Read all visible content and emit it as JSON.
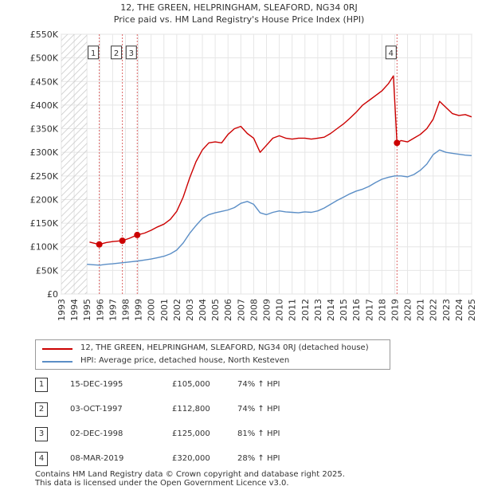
{
  "title_line1": "12, THE GREEN, HELPRINGHAM, SLEAFORD, NG34 0RJ",
  "title_line2": "Price paid vs. HM Land Registry's House Price Index (HPI)",
  "chart_data": {
    "type": "line",
    "title": "12, THE GREEN, HELPRINGHAM, SLEAFORD, NG34 0RJ — Price paid vs. HM Land Registry's House Price Index (HPI)",
    "xlabel": "",
    "ylabel": "",
    "xlim": [
      1993,
      2025
    ],
    "ylim": [
      0,
      550000
    ],
    "x_ticks": [
      1993,
      1994,
      1995,
      1996,
      1997,
      1998,
      1999,
      2000,
      2001,
      2002,
      2003,
      2004,
      2005,
      2006,
      2007,
      2008,
      2009,
      2010,
      2011,
      2012,
      2013,
      2014,
      2015,
      2016,
      2017,
      2018,
      2019,
      2020,
      2021,
      2022,
      2023,
      2024,
      2025
    ],
    "y_ticks": [
      0,
      50000,
      100000,
      150000,
      200000,
      250000,
      300000,
      350000,
      400000,
      450000,
      500000,
      550000
    ],
    "y_tick_labels": [
      "£0",
      "£50K",
      "£100K",
      "£150K",
      "£200K",
      "£250K",
      "£300K",
      "£350K",
      "£400K",
      "£450K",
      "£500K",
      "£550K"
    ],
    "grid": true,
    "series": [
      {
        "name": "12, THE GREEN, HELPRINGHAM, SLEAFORD, NG34 0RJ (detached house)",
        "color": "#cc0000",
        "x": [
          1995.2,
          1995.96,
          1996.5,
          1997.0,
          1997.76,
          1998.3,
          1998.92,
          1999.5,
          2000.0,
          2000.5,
          2001.0,
          2001.5,
          2002.0,
          2002.5,
          2003.0,
          2003.5,
          2004.0,
          2004.5,
          2005.0,
          2005.5,
          2006.0,
          2006.5,
          2007.0,
          2007.5,
          2008.0,
          2008.5,
          2009.0,
          2009.5,
          2010.0,
          2010.5,
          2011.0,
          2011.5,
          2012.0,
          2012.5,
          2013.0,
          2013.5,
          2014.0,
          2014.5,
          2015.0,
          2015.5,
          2016.0,
          2016.5,
          2017.0,
          2017.5,
          2018.0,
          2018.5,
          2018.9,
          2019.18,
          2019.5,
          2020.0,
          2020.5,
          2021.0,
          2021.5,
          2022.0,
          2022.5,
          2023.0,
          2023.5,
          2024.0,
          2024.5,
          2025.0
        ],
        "y": [
          110000,
          105000,
          109000,
          111000,
          112800,
          118000,
          125000,
          129000,
          135000,
          142000,
          148000,
          158000,
          175000,
          205000,
          245000,
          280000,
          305000,
          320000,
          322000,
          320000,
          338000,
          350000,
          355000,
          340000,
          330000,
          300000,
          315000,
          330000,
          335000,
          330000,
          328000,
          330000,
          330000,
          328000,
          330000,
          332000,
          340000,
          350000,
          360000,
          372000,
          385000,
          400000,
          410000,
          420000,
          430000,
          445000,
          462000,
          320000,
          325000,
          322000,
          330000,
          338000,
          350000,
          370000,
          408000,
          395000,
          382000,
          378000,
          380000,
          375000
        ]
      },
      {
        "name": "HPI: Average price, detached house, North Kesteven",
        "color": "#5b8ec6",
        "x": [
          1995.0,
          1995.5,
          1996.0,
          1996.5,
          1997.0,
          1997.5,
          1998.0,
          1998.5,
          1999.0,
          1999.5,
          2000.0,
          2000.5,
          2001.0,
          2001.5,
          2002.0,
          2002.5,
          2003.0,
          2003.5,
          2004.0,
          2004.5,
          2005.0,
          2005.5,
          2006.0,
          2006.5,
          2007.0,
          2007.5,
          2008.0,
          2008.5,
          2009.0,
          2009.5,
          2010.0,
          2010.5,
          2011.0,
          2011.5,
          2012.0,
          2012.5,
          2013.0,
          2013.5,
          2014.0,
          2014.5,
          2015.0,
          2015.5,
          2016.0,
          2016.5,
          2017.0,
          2017.5,
          2018.0,
          2018.5,
          2019.0,
          2019.5,
          2020.0,
          2020.5,
          2021.0,
          2021.5,
          2022.0,
          2022.5,
          2023.0,
          2023.5,
          2024.0,
          2024.5,
          2025.0
        ],
        "y": [
          63000,
          62000,
          61000,
          63000,
          64000,
          65500,
          67000,
          68500,
          70000,
          72000,
          74000,
          77000,
          80000,
          85000,
          93000,
          108000,
          128000,
          145000,
          160000,
          168000,
          172000,
          175000,
          178000,
          183000,
          192000,
          196000,
          190000,
          172000,
          168000,
          173000,
          176000,
          174000,
          173000,
          172000,
          174000,
          173000,
          176000,
          182000,
          190000,
          198000,
          205000,
          212000,
          218000,
          222000,
          228000,
          236000,
          243000,
          247000,
          250000,
          250000,
          248000,
          253000,
          262000,
          275000,
          295000,
          305000,
          300000,
          298000,
          296000,
          294000,
          293000
        ]
      }
    ],
    "sale_markers": [
      {
        "label": "1",
        "x": 1995.96,
        "y": 105000
      },
      {
        "label": "2",
        "x": 1997.76,
        "y": 112800
      },
      {
        "label": "3",
        "x": 1998.92,
        "y": 125000
      },
      {
        "label": "4",
        "x": 2019.18,
        "y": 320000
      }
    ],
    "annotations": [
      "1",
      "2",
      "3",
      "4"
    ]
  },
  "legend": {
    "items": [
      {
        "label": "12, THE GREEN, HELPRINGHAM, SLEAFORD, NG34 0RJ (detached house)",
        "color": "#cc0000"
      },
      {
        "label": "HPI: Average price, detached house, North Kesteven",
        "color": "#5b8ec6"
      }
    ]
  },
  "sales": [
    {
      "num": "1",
      "date": "15-DEC-1995",
      "price": "£105,000",
      "hpi": "74% ↑ HPI"
    },
    {
      "num": "2",
      "date": "03-OCT-1997",
      "price": "£112,800",
      "hpi": "74% ↑ HPI"
    },
    {
      "num": "3",
      "date": "02-DEC-1998",
      "price": "£125,000",
      "hpi": "81% ↑ HPI"
    },
    {
      "num": "4",
      "date": "08-MAR-2019",
      "price": "£320,000",
      "hpi": "28% ↑ HPI"
    }
  ],
  "footer": {
    "line1": "Contains HM Land Registry data © Crown copyright and database right 2025.",
    "line2": "This data is licensed under the Open Government Licence v3.0."
  }
}
